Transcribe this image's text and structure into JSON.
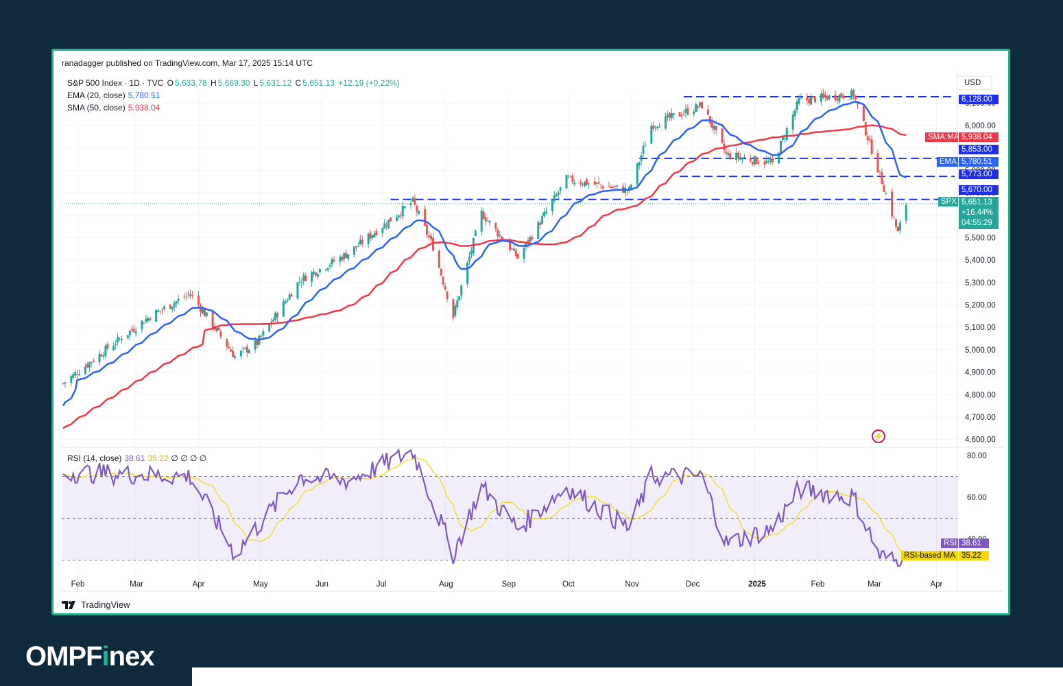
{
  "header": {
    "publisher_line": "ranadagger published on TradingView.com, Mar 17, 2025 15:14 UTC"
  },
  "legend": {
    "symbol": "S&P 500 Index · 1D · TVC",
    "open_label": "O",
    "open": "5,633.78",
    "high_label": "H",
    "high": "5,669.30",
    "low_label": "L",
    "low": "5,631.12",
    "close_label": "C",
    "close": "5,651.13",
    "change": "+12.19 (+0.22%)",
    "ema_label": "EMA (20, close)",
    "ema_value": "5,780.51",
    "sma_label": "SMA (50, close)",
    "sma_value": "5,938.04",
    "rsi_label": "RSI (14, close)",
    "rsi_value": "38.61",
    "rsi_ma_value": "35.22",
    "rsi_extra": "∅ ∅ ∅ ∅"
  },
  "currency": "USD",
  "price_scale": {
    "ticks": [
      "6,100.00",
      "6,000.00",
      "5,900.00",
      "5,800.00",
      "5,700.00",
      "5,600.00",
      "5,500.00",
      "5,400.00",
      "5,300.00",
      "5,200.00",
      "5,100.00",
      "5,000.00",
      "4,900.00",
      "4,800.00",
      "4,700.00",
      "4,600.00"
    ]
  },
  "rsi_scale": {
    "ticks": [
      "80.00",
      "60.00",
      "40.00"
    ]
  },
  "time_axis": {
    "labels": [
      "Feb",
      "Mar",
      "Apr",
      "May",
      "Jun",
      "Jul",
      "Aug",
      "Sep",
      "Oct",
      "Nov",
      "Dec",
      "2025",
      "Feb",
      "Mar",
      "Apr"
    ]
  },
  "price_tags": {
    "top_level": "6,128.00",
    "sma_name": "SMA:MA",
    "sma": "5,938.04",
    "level_5853": "5,853.00",
    "ema_name": "EMA",
    "ema": "5,780.51",
    "level_5773": "5,773.00",
    "level_5670": "5,670.00",
    "symbol_name": "SPX",
    "last": "5,651.13",
    "last_change": "+16.44%",
    "countdown": "04:55:29"
  },
  "rsi_tags": {
    "rsi_name": "RSI",
    "rsi": "38.61",
    "ma_name": "RSI-based MA",
    "ma": "35.22"
  },
  "footer": {
    "logo_text": "TradingView"
  },
  "brand": {
    "name_part1": "OMPF",
    "name_i": "i",
    "name_part2": "nex"
  },
  "colors": {
    "background": "#0f2a3c",
    "frame": "#21b18f",
    "up": "#26a69a",
    "down": "#ef5350",
    "ema": "#2962ff",
    "sma": "#f23645",
    "levels": "#1e2ee8",
    "rsi": "#7e57c2",
    "rsi_ma": "#f5d60a"
  },
  "icons": {
    "tradingview": "tradingview-logo-icon",
    "lightning": "lightning-icon"
  },
  "chart_data": {
    "type": "candlestick",
    "title": "S&P 500 Index · 1D · TVC",
    "x_range": [
      "2024-01-25",
      "2025-04-10"
    ],
    "y_range": [
      4570,
      6150
    ],
    "resistance_support_levels": [
      6128,
      5853,
      5773,
      5670
    ],
    "last_price": 5651.13,
    "keypoints": [
      {
        "date": "2024-01-25",
        "close": 4850
      },
      {
        "date": "2024-02-15",
        "close": 5000
      },
      {
        "date": "2024-03-08",
        "close": 5150
      },
      {
        "date": "2024-03-28",
        "close": 5250
      },
      {
        "date": "2024-04-19",
        "close": 4970
      },
      {
        "date": "2024-04-30",
        "close": 5030
      },
      {
        "date": "2024-05-21",
        "close": 5310
      },
      {
        "date": "2024-06-14",
        "close": 5430
      },
      {
        "date": "2024-07-16",
        "close": 5660
      },
      {
        "date": "2024-07-26",
        "close": 5460
      },
      {
        "date": "2024-08-05",
        "close": 5150
      },
      {
        "date": "2024-08-19",
        "close": 5610
      },
      {
        "date": "2024-09-06",
        "close": 5410
      },
      {
        "date": "2024-09-30",
        "close": 5760
      },
      {
        "date": "2024-10-31",
        "close": 5710
      },
      {
        "date": "2024-11-11",
        "close": 6000
      },
      {
        "date": "2024-12-06",
        "close": 6090
      },
      {
        "date": "2024-12-18",
        "close": 5870
      },
      {
        "date": "2025-01-10",
        "close": 5830
      },
      {
        "date": "2025-01-23",
        "close": 6110
      },
      {
        "date": "2025-02-19",
        "close": 6140
      },
      {
        "date": "2025-03-04",
        "close": 5780
      },
      {
        "date": "2025-03-13",
        "close": 5520
      },
      {
        "date": "2025-03-17",
        "close": 5651
      }
    ],
    "ema20_last": 5780.51,
    "sma50_last": 5938.04,
    "rsi": {
      "ylim": [
        25,
        85
      ],
      "bands": [
        70,
        50,
        30
      ],
      "last": 38.61,
      "ma_last": 35.22,
      "keypoints": [
        {
          "date": "2024-01-25",
          "value": 72
        },
        {
          "date": "2024-03-28",
          "value": 70
        },
        {
          "date": "2024-04-19",
          "value": 33
        },
        {
          "date": "2024-05-21",
          "value": 70
        },
        {
          "date": "2024-06-14",
          "value": 68
        },
        {
          "date": "2024-07-16",
          "value": 82
        },
        {
          "date": "2024-08-05",
          "value": 33
        },
        {
          "date": "2024-08-19",
          "value": 65
        },
        {
          "date": "2024-09-06",
          "value": 45
        },
        {
          "date": "2024-09-30",
          "value": 65
        },
        {
          "date": "2024-10-31",
          "value": 45
        },
        {
          "date": "2024-11-11",
          "value": 70
        },
        {
          "date": "2024-12-06",
          "value": 70
        },
        {
          "date": "2024-12-18",
          "value": 38
        },
        {
          "date": "2025-01-10",
          "value": 45
        },
        {
          "date": "2025-01-23",
          "value": 64
        },
        {
          "date": "2025-02-19",
          "value": 60
        },
        {
          "date": "2025-03-04",
          "value": 32
        },
        {
          "date": "2025-03-13",
          "value": 29
        },
        {
          "date": "2025-03-17",
          "value": 38.61
        }
      ]
    }
  }
}
